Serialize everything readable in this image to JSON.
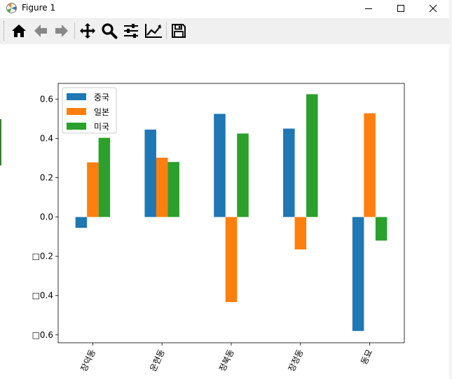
{
  "window": {
    "title": "Figure 1"
  },
  "toolbar": {
    "buttons": [
      "home-icon",
      "back-icon",
      "forward-icon",
      "pan-icon",
      "zoom-icon",
      "configure-subplots-icon",
      "edit-axis-icon",
      "save-icon"
    ]
  },
  "colors": {
    "series": [
      "#1f77b4",
      "#ff7f0e",
      "#2ca02c"
    ]
  },
  "chart_data": {
    "type": "bar",
    "categories": [
      "장덕동",
      "운현동",
      "정북동",
      "장정동",
      "동묘"
    ],
    "series": [
      {
        "name": "중국",
        "values": [
          -0.055,
          0.445,
          0.525,
          0.45,
          -0.58
        ]
      },
      {
        "name": "일본",
        "values": [
          0.278,
          0.302,
          -0.433,
          -0.165,
          0.528
        ]
      },
      {
        "name": "미국",
        "values": [
          0.403,
          0.28,
          0.425,
          0.625,
          -0.12
        ]
      }
    ],
    "yticks": [
      0.6,
      0.4,
      0.2,
      0.0,
      -0.2,
      -0.4,
      -0.6
    ],
    "ytick_labels": [
      "0.6",
      "0.4",
      "0.2",
      "0.0",
      "□0.2",
      "□0.4",
      "□0.6"
    ],
    "ylim": [
      -0.64,
      0.68
    ],
    "legend_position": "upper-left",
    "grid": false
  }
}
